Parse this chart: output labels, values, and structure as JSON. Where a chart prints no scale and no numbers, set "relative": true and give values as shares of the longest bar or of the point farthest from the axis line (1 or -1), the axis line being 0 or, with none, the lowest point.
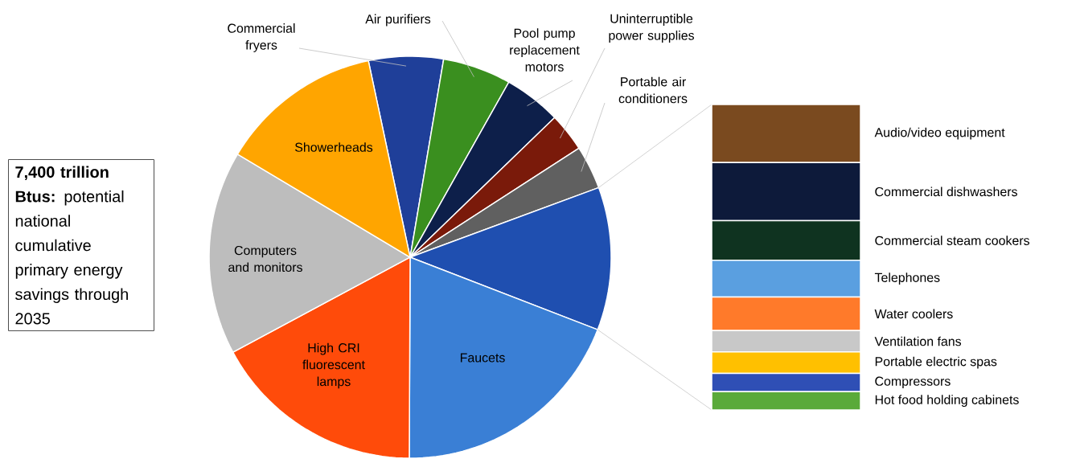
{
  "chart_data": [
    {
      "type": "pie",
      "categories": [
        "Commercial fryers",
        "Air purifiers",
        "Pool pump replacement motors",
        "Uninterruptible power supplies",
        "Portable air conditioners",
        null,
        "Faucets",
        "High CRI fluorescent lamps",
        "Computers and monitors",
        "Showerheads"
      ],
      "values": [
        6,
        5.5,
        4.6,
        3.1,
        3.5,
        11.5,
        19.2,
        17.1,
        16.4,
        13.1
      ],
      "colors": [
        "#1f3f99",
        "#3a8f1f",
        "#0d1f4a",
        "#7a1a0a",
        "#606060",
        "#1f4fb0",
        "#3a7fd5",
        "#ff4b0a",
        "#bdbdbd",
        "#ffa500"
      ],
      "annotations": [
        "**7,400 trillion Btus:** potential national cumulative primary energy savings through 2035"
      ]
    },
    {
      "type": "bar",
      "stacked": true,
      "relative": true,
      "categories": [
        null
      ],
      "series": [
        {
          "name": "Hot food holding cabinets",
          "color": "#5aaa3a",
          "values": [
            0.06
          ]
        },
        {
          "name": "Compressors",
          "color": "#2f4fb5",
          "values": [
            0.06
          ]
        },
        {
          "name": "Portable electric spas",
          "color": "#ffc000",
          "values": [
            0.07
          ]
        },
        {
          "name": "Ventilation fans",
          "color": "#c8c8c8",
          "values": [
            0.07
          ]
        },
        {
          "name": "Water coolers",
          "color": "#ff7a2a",
          "values": [
            0.11
          ]
        },
        {
          "name": "Telephones",
          "color": "#5a9fe0",
          "values": [
            0.12
          ]
        },
        {
          "name": "Commercial steam cookers",
          "color": "#0f3320",
          "values": [
            0.13
          ]
        },
        {
          "name": "Commercial dishwashers",
          "color": "#0d1a3a",
          "values": [
            0.19
          ]
        },
        {
          "name": "Audio/video equipment",
          "color": "#7a4a1f",
          "values": [
            0.19
          ]
        }
      ]
    }
  ]
}
